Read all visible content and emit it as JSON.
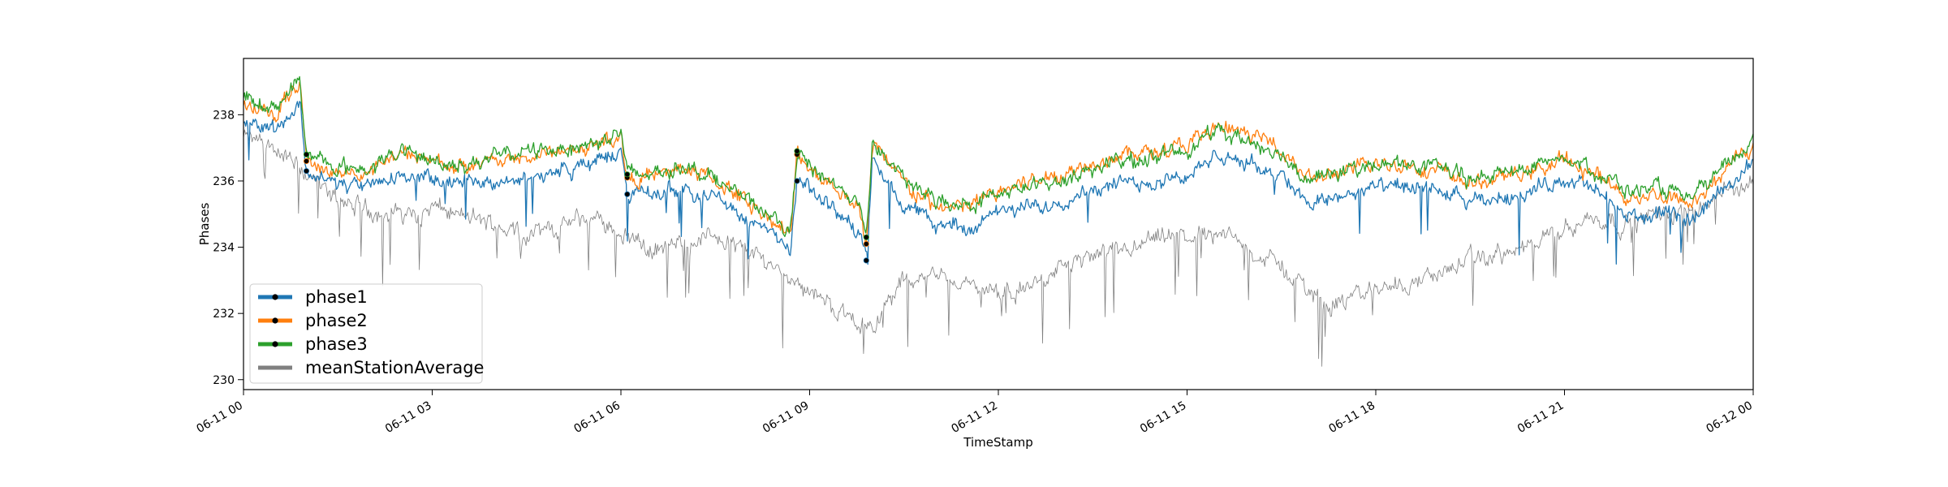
{
  "chart_data": {
    "type": "line",
    "xlabel": "TimeStamp",
    "ylabel": "Phases",
    "ylim": [
      229.7,
      239.7
    ],
    "xlim": [
      "06-11 00",
      "06-12 00"
    ],
    "x_ticks": [
      "06-11 00",
      "06-11 03",
      "06-11 06",
      "06-11 09",
      "06-11 12",
      "06-11 15",
      "06-11 18",
      "06-11 21",
      "06-12 00"
    ],
    "x_tick_hours": [
      0,
      3,
      6,
      9,
      12,
      15,
      18,
      21,
      24
    ],
    "y_ticks": [
      230,
      232,
      234,
      236,
      238
    ],
    "grid": false,
    "legend_position": "lower-left",
    "series": [
      {
        "name": "phase1",
        "color": "#1f77b4",
        "x_hours": [
          0,
          0.5,
          0.9,
          1.0,
          1.5,
          2.0,
          2.5,
          3.0,
          3.5,
          4.0,
          4.5,
          5.0,
          5.5,
          6.0,
          6.1,
          6.5,
          7.0,
          7.5,
          8.0,
          8.5,
          8.7,
          8.8,
          9.0,
          9.5,
          9.8,
          9.9,
          10.0,
          10.5,
          11.0,
          11.5,
          12.0,
          12.5,
          13.0,
          13.5,
          14.0,
          14.5,
          15.0,
          15.5,
          16.0,
          16.5,
          17.0,
          17.5,
          18.0,
          18.5,
          19.0,
          19.5,
          20.0,
          20.5,
          21.0,
          21.5,
          22.0,
          22.5,
          23.0,
          23.5,
          24.0
        ],
        "values": [
          237.9,
          237.6,
          238.3,
          236.3,
          235.9,
          235.8,
          236.2,
          236.0,
          235.9,
          236.0,
          236.1,
          236.3,
          236.5,
          236.9,
          235.6,
          235.6,
          235.8,
          235.5,
          234.9,
          234.2,
          233.9,
          236.0,
          235.7,
          235.0,
          234.5,
          233.6,
          236.6,
          235.3,
          234.7,
          234.6,
          235.0,
          235.2,
          235.4,
          235.8,
          235.9,
          236.0,
          236.2,
          236.7,
          236.5,
          236.2,
          235.3,
          235.6,
          235.8,
          235.8,
          235.7,
          235.3,
          235.5,
          235.7,
          236.1,
          235.7,
          234.9,
          235.0,
          234.8,
          235.7,
          236.6
        ]
      },
      {
        "name": "phase2",
        "color": "#ff7f0e",
        "x_hours": [
          0,
          0.5,
          0.9,
          1.0,
          1.5,
          2.0,
          2.5,
          3.0,
          3.5,
          4.0,
          4.5,
          5.0,
          5.5,
          6.0,
          6.1,
          6.5,
          7.0,
          7.5,
          8.0,
          8.5,
          8.7,
          8.8,
          9.0,
          9.5,
          9.8,
          9.9,
          10.0,
          10.5,
          11.0,
          11.5,
          12.0,
          12.5,
          13.0,
          13.5,
          14.0,
          14.5,
          15.0,
          15.5,
          16.0,
          16.5,
          17.0,
          17.5,
          18.0,
          18.5,
          19.0,
          19.5,
          20.0,
          20.5,
          21.0,
          21.5,
          22.0,
          22.5,
          23.0,
          23.5,
          24.0
        ],
        "values": [
          238.3,
          238.0,
          239.0,
          236.6,
          236.2,
          236.3,
          236.8,
          236.6,
          236.4,
          236.6,
          236.7,
          236.9,
          237.0,
          237.4,
          236.1,
          236.1,
          236.4,
          236.0,
          235.4,
          234.7,
          234.3,
          236.8,
          236.4,
          235.7,
          235.1,
          234.1,
          237.1,
          235.9,
          235.2,
          235.2,
          235.7,
          236.0,
          236.2,
          236.6,
          236.8,
          236.9,
          237.1,
          237.6,
          237.4,
          237.0,
          236.0,
          236.3,
          236.5,
          236.5,
          236.3,
          235.9,
          236.1,
          236.3,
          236.6,
          236.2,
          235.5,
          235.6,
          235.3,
          236.2,
          237.1
        ]
      },
      {
        "name": "phase3",
        "color": "#2ca02c",
        "x_hours": [
          0,
          0.5,
          0.9,
          1.0,
          1.5,
          2.0,
          2.5,
          3.0,
          3.5,
          4.0,
          4.5,
          5.0,
          5.5,
          6.0,
          6.1,
          6.5,
          7.0,
          7.5,
          8.0,
          8.5,
          8.7,
          8.8,
          9.0,
          9.5,
          9.8,
          9.9,
          10.0,
          10.5,
          11.0,
          11.5,
          12.0,
          12.5,
          13.0,
          13.5,
          14.0,
          14.5,
          15.0,
          15.5,
          16.0,
          16.5,
          17.0,
          17.5,
          18.0,
          18.5,
          19.0,
          19.5,
          20.0,
          20.5,
          21.0,
          21.5,
          22.0,
          22.5,
          23.0,
          23.5,
          24.0
        ],
        "values": [
          238.5,
          238.2,
          239.1,
          236.8,
          236.4,
          236.4,
          236.9,
          236.6,
          236.5,
          236.7,
          236.9,
          237.0,
          237.1,
          237.5,
          236.2,
          236.2,
          236.5,
          236.1,
          235.4,
          234.8,
          234.4,
          236.9,
          236.4,
          235.8,
          235.2,
          234.3,
          237.2,
          236.0,
          235.4,
          235.3,
          235.6,
          235.8,
          236.0,
          236.4,
          236.6,
          236.7,
          237.0,
          237.5,
          237.2,
          236.8,
          236.0,
          236.3,
          236.5,
          236.5,
          236.4,
          236.0,
          236.3,
          236.4,
          236.8,
          236.3,
          235.7,
          235.8,
          235.4,
          236.3,
          237.2
        ]
      },
      {
        "name": "meanStationAverage",
        "color": "#808080",
        "x_hours": [
          0,
          0.5,
          1.0,
          1.5,
          2.0,
          2.5,
          3.0,
          3.5,
          4.0,
          4.5,
          5.0,
          5.5,
          6.0,
          6.5,
          7.0,
          7.5,
          8.0,
          8.5,
          9.0,
          9.5,
          10.0,
          10.5,
          11.0,
          11.5,
          12.0,
          12.5,
          13.0,
          13.5,
          14.0,
          14.5,
          15.0,
          15.5,
          16.0,
          16.5,
          17.0,
          17.5,
          18.0,
          18.5,
          19.0,
          19.5,
          20.0,
          20.5,
          21.0,
          21.5,
          22.0,
          22.5,
          23.0,
          23.5,
          24.0
        ],
        "values": [
          237.3,
          237.0,
          236.2,
          235.4,
          235.1,
          235.0,
          235.2,
          234.9,
          234.7,
          234.4,
          234.6,
          234.9,
          234.5,
          233.9,
          234.1,
          234.4,
          233.9,
          233.4,
          232.7,
          232.0,
          231.6,
          233.0,
          233.2,
          232.9,
          232.5,
          232.8,
          233.5,
          233.7,
          233.8,
          234.2,
          234.3,
          234.5,
          233.9,
          233.4,
          232.6,
          232.3,
          232.8,
          232.9,
          233.2,
          233.6,
          233.8,
          234.0,
          234.6,
          234.9,
          234.7,
          235.0,
          235.2,
          235.6,
          236.0
        ]
      }
    ]
  }
}
